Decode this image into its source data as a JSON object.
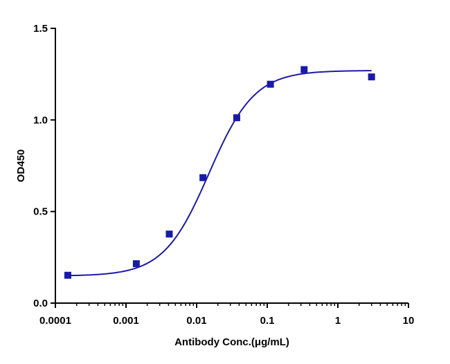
{
  "chart_data": {
    "type": "scatter",
    "xlabel": "Antibody Conc.(μg/mL)",
    "ylabel": "OD450",
    "xscale": "log",
    "xlim": [
      0.0001,
      10
    ],
    "ylim": [
      0,
      1.5
    ],
    "xticks": [
      "0.0001",
      "0.001",
      "0.01",
      "0.1",
      "1",
      "10"
    ],
    "yticks": [
      "0.0",
      "0.5",
      "1.0",
      "1.5"
    ],
    "color": "#1a1aa8",
    "series": [
      {
        "points": [
          {
            "x": 0.00015,
            "y": 0.152
          },
          {
            "x": 0.0014,
            "y": 0.215
          },
          {
            "x": 0.0041,
            "y": 0.377
          },
          {
            "x": 0.0123,
            "y": 0.685
          },
          {
            "x": 0.037,
            "y": 1.012
          },
          {
            "x": 0.111,
            "y": 1.195
          },
          {
            "x": 0.333,
            "y": 1.275
          },
          {
            "x": 3.0,
            "y": 1.235
          }
        ],
        "fit": {
          "model": "4PL",
          "bottom": 0.148,
          "top": 1.27,
          "ec50": 0.015,
          "hill": 1.35
        }
      }
    ]
  }
}
